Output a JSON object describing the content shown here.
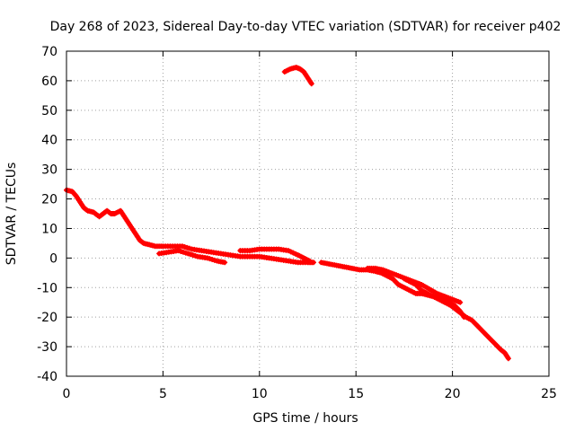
{
  "chart_data": {
    "type": "scatter",
    "title": "Day 268 of 2023, Sidereal Day-to-day VTEC variation (SDTVAR) for receiver p402",
    "xlabel": "GPS time / hours",
    "ylabel": "SDTVAR / TECUs",
    "xlim": [
      0,
      25
    ],
    "ylim": [
      -40,
      70
    ],
    "xticks": [
      0,
      5,
      10,
      15,
      20,
      25
    ],
    "yticks": [
      -40,
      -30,
      -20,
      -10,
      0,
      10,
      20,
      30,
      40,
      50,
      60,
      70
    ],
    "grid": true,
    "marker": "+",
    "color": "#ff0000",
    "series": [
      {
        "name": "SDTVAR",
        "segments": [
          [
            [
              0.0,
              23
            ],
            [
              0.3,
              22.5
            ],
            [
              0.5,
              21
            ],
            [
              0.7,
              19
            ],
            [
              0.9,
              17
            ],
            [
              1.1,
              16
            ],
            [
              1.4,
              15.5
            ],
            [
              1.7,
              14
            ],
            [
              1.9,
              15
            ],
            [
              2.1,
              16
            ],
            [
              2.3,
              15
            ],
            [
              2.5,
              15
            ],
            [
              2.8,
              16
            ],
            [
              3.0,
              14
            ],
            [
              3.2,
              12
            ],
            [
              3.4,
              10
            ],
            [
              3.6,
              8
            ],
            [
              3.8,
              6
            ],
            [
              4.0,
              5
            ],
            [
              4.3,
              4.5
            ],
            [
              4.6,
              4
            ],
            [
              5.0,
              4
            ],
            [
              5.5,
              4
            ],
            [
              6.0,
              4
            ],
            [
              6.5,
              3
            ],
            [
              7.0,
              2.5
            ],
            [
              7.5,
              2
            ],
            [
              8.0,
              1.5
            ],
            [
              8.5,
              1
            ],
            [
              9.0,
              0.5
            ],
            [
              9.5,
              0.5
            ],
            [
              10.0,
              0.5
            ],
            [
              10.5,
              0
            ],
            [
              11.0,
              -0.5
            ],
            [
              11.5,
              -1
            ],
            [
              12.0,
              -1.5
            ],
            [
              12.5,
              -1.5
            ],
            [
              12.8,
              -1.5
            ]
          ],
          [
            [
              9.0,
              2.5
            ],
            [
              9.5,
              2.5
            ],
            [
              10.0,
              3
            ],
            [
              10.5,
              3
            ],
            [
              11.0,
              3
            ],
            [
              11.5,
              2.5
            ],
            [
              12.0,
              1
            ],
            [
              12.3,
              0
            ],
            [
              12.6,
              -1
            ]
          ],
          [
            [
              4.8,
              1.5
            ],
            [
              5.3,
              2
            ],
            [
              5.8,
              2.5
            ],
            [
              6.3,
              1.5
            ],
            [
              6.8,
              0.5
            ],
            [
              7.3,
              0
            ],
            [
              7.8,
              -1
            ],
            [
              8.2,
              -1.5
            ]
          ],
          [
            [
              11.3,
              63
            ],
            [
              11.6,
              64
            ],
            [
              11.9,
              64.5
            ],
            [
              12.1,
              64
            ],
            [
              12.3,
              63
            ],
            [
              12.5,
              61
            ],
            [
              12.7,
              59
            ]
          ],
          [
            [
              13.2,
              -1.5
            ],
            [
              13.6,
              -2
            ],
            [
              14.0,
              -2.5
            ],
            [
              14.4,
              -3
            ],
            [
              14.8,
              -3.5
            ],
            [
              15.2,
              -4
            ],
            [
              15.6,
              -4
            ],
            [
              16.0,
              -4.5
            ],
            [
              16.3,
              -5
            ],
            [
              16.6,
              -6
            ],
            [
              16.9,
              -7
            ],
            [
              17.2,
              -9
            ],
            [
              17.5,
              -10
            ],
            [
              17.8,
              -11
            ],
            [
              18.1,
              -12
            ],
            [
              18.4,
              -12
            ],
            [
              18.7,
              -12.5
            ],
            [
              19.0,
              -13
            ],
            [
              19.3,
              -14
            ],
            [
              19.6,
              -15
            ],
            [
              19.9,
              -16
            ],
            [
              20.1,
              -17
            ],
            [
              20.3,
              -18
            ],
            [
              20.5,
              -19
            ],
            [
              20.7,
              -20
            ],
            [
              21.0,
              -21
            ],
            [
              21.3,
              -23
            ],
            [
              21.6,
              -25
            ],
            [
              21.9,
              -27
            ],
            [
              22.2,
              -29
            ],
            [
              22.5,
              -31
            ],
            [
              22.7,
              -32
            ],
            [
              22.9,
              -34
            ]
          ],
          [
            [
              15.6,
              -3.5
            ],
            [
              16.0,
              -3.5
            ],
            [
              16.4,
              -4
            ],
            [
              16.8,
              -5
            ],
            [
              17.2,
              -6
            ],
            [
              17.6,
              -7
            ],
            [
              18.0,
              -8
            ],
            [
              18.4,
              -9
            ],
            [
              18.8,
              -10.5
            ],
            [
              19.2,
              -12
            ],
            [
              19.6,
              -13
            ],
            [
              20.0,
              -14
            ],
            [
              20.4,
              -15
            ]
          ],
          [
            [
              17.5,
              -7
            ],
            [
              17.8,
              -8
            ],
            [
              18.1,
              -9
            ],
            [
              18.4,
              -11
            ],
            [
              18.7,
              -12
            ],
            [
              19.0,
              -13
            ],
            [
              19.4,
              -14
            ],
            [
              19.8,
              -15
            ],
            [
              20.1,
              -16
            ],
            [
              20.4,
              -18
            ],
            [
              20.6,
              -20
            ]
          ]
        ]
      }
    ]
  }
}
